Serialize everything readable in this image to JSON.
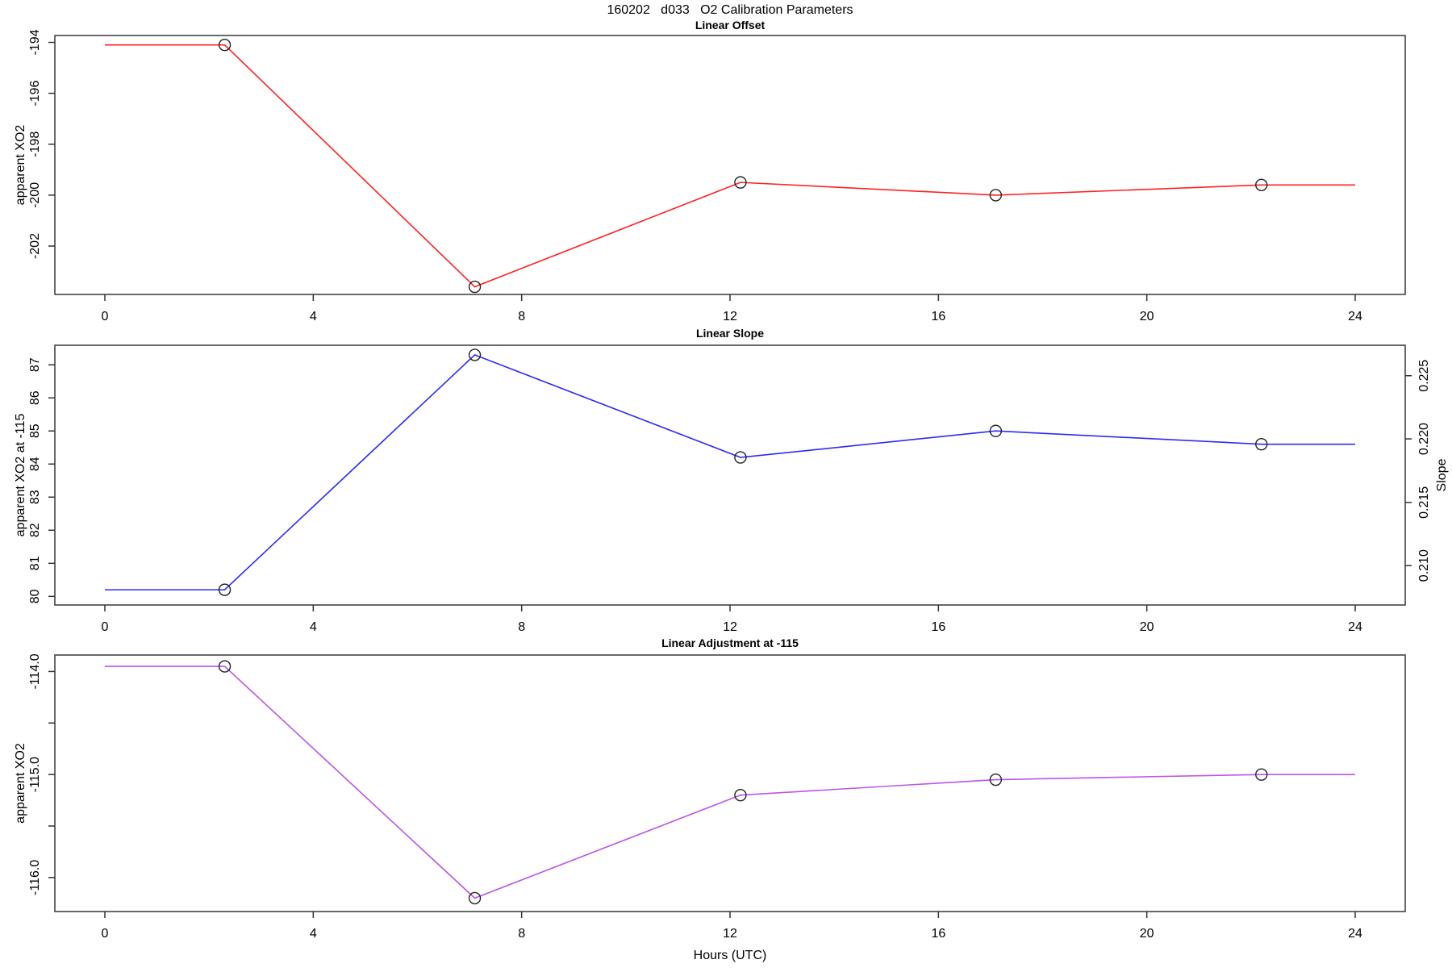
{
  "chart_title": "160202   d033   O2 Calibration Parameters",
  "xlabel": "Hours (UTC)",
  "chart_data": [
    {
      "type": "line",
      "title": "Linear Offset",
      "ylabel": "apparent XO2",
      "color": "#ff2222",
      "marker": "open-circle",
      "x": [
        2.3,
        7.1,
        12.2,
        17.1,
        22.2
      ],
      "values": [
        -194.1,
        -203.6,
        -199.5,
        -200.0,
        -199.6
      ],
      "line_x": [
        0,
        2.3,
        7.1,
        12.2,
        17.1,
        22.2,
        24
      ],
      "line_y": [
        -194.1,
        -194.1,
        -203.6,
        -199.5,
        -200.0,
        -199.6,
        -199.6
      ],
      "xlim": [
        -0.96,
        24.96
      ],
      "ylim": [
        -203.9,
        -193.73
      ],
      "xticks": [
        0,
        4,
        8,
        12,
        16,
        20,
        24
      ],
      "yticks": [
        {
          "v": -194,
          "label": "-194"
        },
        {
          "v": -196,
          "label": "-196"
        },
        {
          "v": -198,
          "label": "-198"
        },
        {
          "v": -200,
          "label": "-200"
        },
        {
          "v": -202,
          "label": "-202"
        }
      ]
    },
    {
      "type": "line",
      "title": "Linear Slope",
      "ylabel": "apparent XO2 at -115",
      "color": "#2b2bf5",
      "marker": "open-circle",
      "x": [
        2.3,
        7.1,
        12.2,
        17.1,
        22.2
      ],
      "values": [
        80.2,
        87.3,
        84.2,
        85.0,
        84.6
      ],
      "line_x": [
        0,
        2.3,
        7.1,
        12.2,
        17.1,
        22.2,
        24
      ],
      "line_y": [
        80.2,
        80.2,
        87.3,
        84.2,
        85.0,
        84.6,
        84.6
      ],
      "xlim": [
        -0.96,
        24.96
      ],
      "ylim": [
        79.74,
        87.59
      ],
      "xticks": [
        0,
        4,
        8,
        12,
        16,
        20,
        24
      ],
      "yticks": [
        {
          "v": 87,
          "label": "87"
        },
        {
          "v": 86,
          "label": "86"
        },
        {
          "v": 85,
          "label": "85"
        },
        {
          "v": 84,
          "label": "84"
        },
        {
          "v": 83,
          "label": "83"
        },
        {
          "v": 82,
          "label": "82"
        },
        {
          "v": 81,
          "label": "81"
        },
        {
          "v": 80,
          "label": "80"
        }
      ],
      "right_axis": {
        "label": "Slope",
        "ticks": [
          {
            "v": 80.93,
            "label": "0.210"
          },
          {
            "v": 82.84,
            "label": "0.215"
          },
          {
            "v": 84.76,
            "label": "0.220"
          },
          {
            "v": 86.67,
            "label": "0.225"
          }
        ]
      }
    },
    {
      "type": "line",
      "title": "Linear Adjustment at -115",
      "ylabel": "apparent XO2",
      "color": "#bb55e8",
      "marker": "open-circle",
      "x": [
        2.3,
        7.1,
        12.2,
        17.1,
        22.2
      ],
      "values": [
        -113.95,
        -116.2,
        -115.2,
        -115.05,
        -115.0
      ],
      "line_x": [
        0,
        2.3,
        7.1,
        12.2,
        17.1,
        22.2,
        24
      ],
      "line_y": [
        -113.95,
        -113.95,
        -116.2,
        -115.2,
        -115.05,
        -115.0,
        -115.0
      ],
      "xlim": [
        -0.96,
        24.96
      ],
      "ylim": [
        -116.33,
        -113.84
      ],
      "xticks": [
        0,
        4,
        8,
        12,
        16,
        20,
        24
      ],
      "yticks": [
        {
          "v": -114.0,
          "label": "-114.0"
        },
        {
          "v": -114.5,
          "label": ""
        },
        {
          "v": -115.0,
          "label": "-115.0"
        },
        {
          "v": -115.5,
          "label": ""
        },
        {
          "v": -116.0,
          "label": "-116.0"
        }
      ]
    }
  ]
}
